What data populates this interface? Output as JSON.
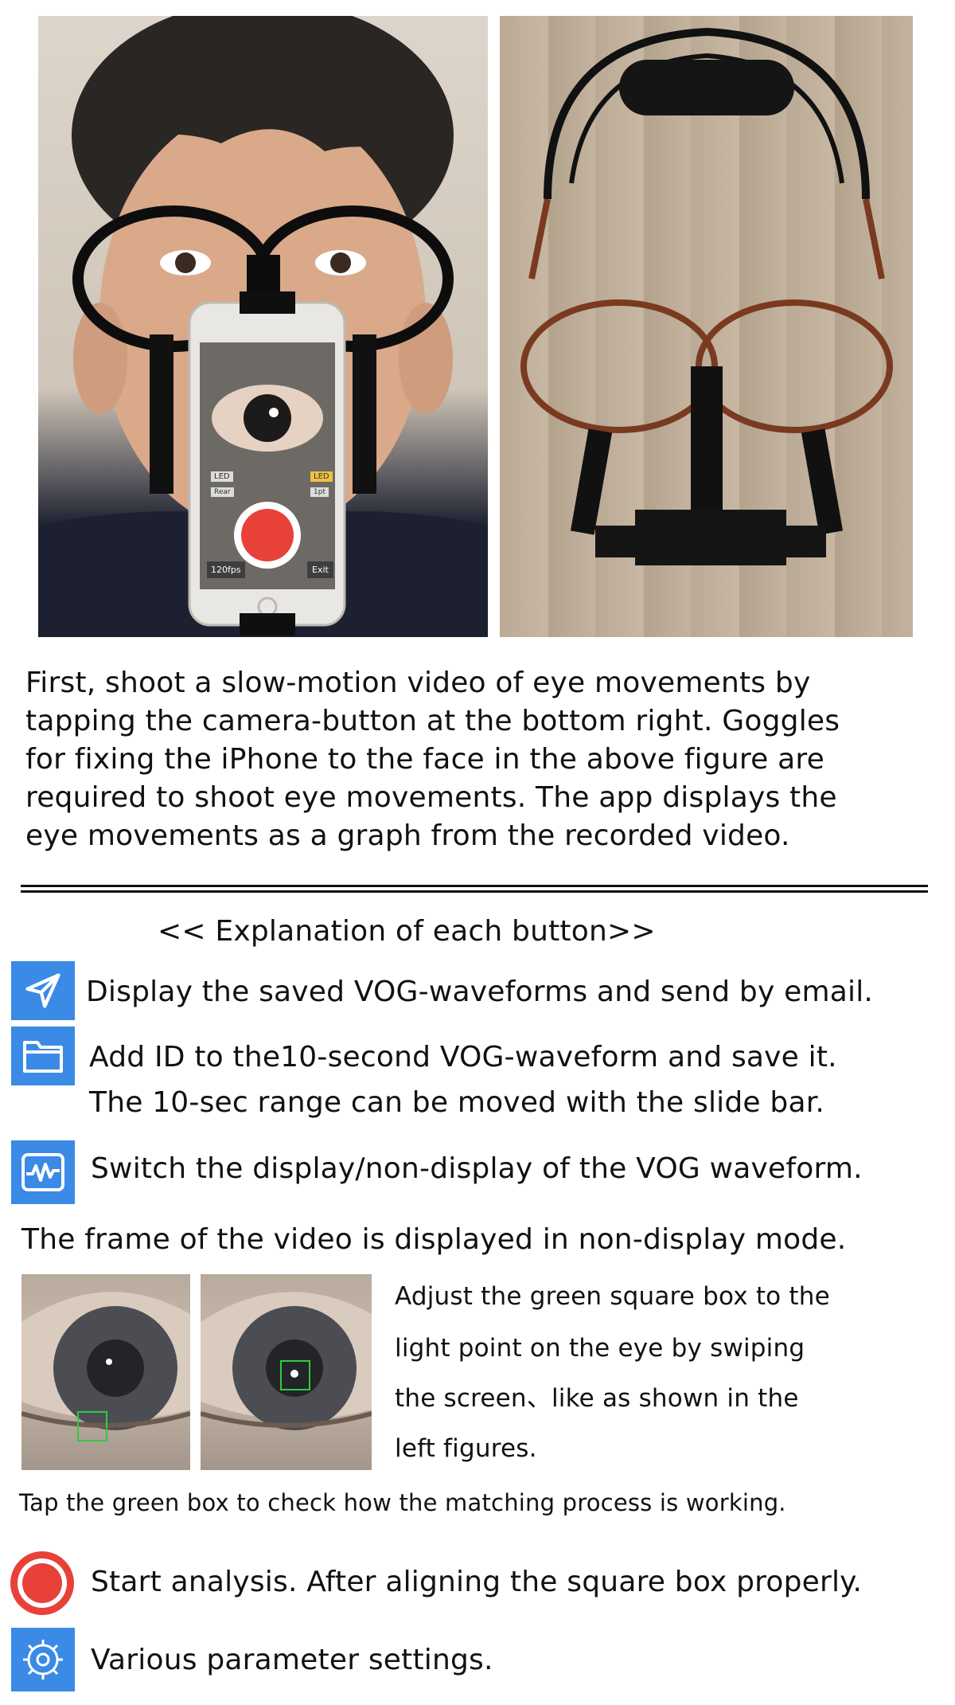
{
  "photos": {
    "left_alt": "person-wearing-goggles-with-iphone",
    "right_alt": "iphone-goggles-frame-on-floor",
    "phone_screen": {
      "led_left": "LED",
      "led_right": "LED",
      "small_left": "Rear",
      "small_right": "1pt",
      "fps_button": "120fps",
      "exit_button": "Exit"
    }
  },
  "intro": {
    "lines": [
      "First, shoot a slow-motion video of eye movements by",
      "tapping the camera-button at the bottom right. Goggles",
      "for fixing the iPhone to the face in the above figure are",
      "required to shoot eye movements. The app displays the",
      "eye movements as a graph from the recorded video."
    ]
  },
  "explanation": {
    "heading": "<< Explanation of each button>>",
    "send_line": "Display the saved VOG-waveforms and send by email.",
    "save_line1": "Add ID to the10-second VOG-waveform and save it.",
    "save_line2": "The 10-sec range can be moved with the slide bar.",
    "wave_line": "Switch the display/non-display of the VOG waveform.",
    "frame_line": "The frame of the video is displayed in non-display mode.",
    "adjust_lines": [
      "Adjust the green square box to the",
      "light point on the eye by swiping",
      "the screen、like as shown in the",
      "left figures."
    ],
    "tap_line": "Tap the green box to check how the matching process is working.",
    "start_line": "Start analysis. After aligning the square box properly.",
    "settings_line": "Various parameter settings."
  },
  "icons": {
    "send": "paper-plane-icon",
    "save": "folder-icon",
    "wave": "waveform-icon",
    "start": "record-icon",
    "settings": "gear-icon"
  },
  "colors": {
    "icon_blue": "#3a8ae6",
    "record_red": "#e8413a",
    "box_green": "#2ecc40"
  }
}
